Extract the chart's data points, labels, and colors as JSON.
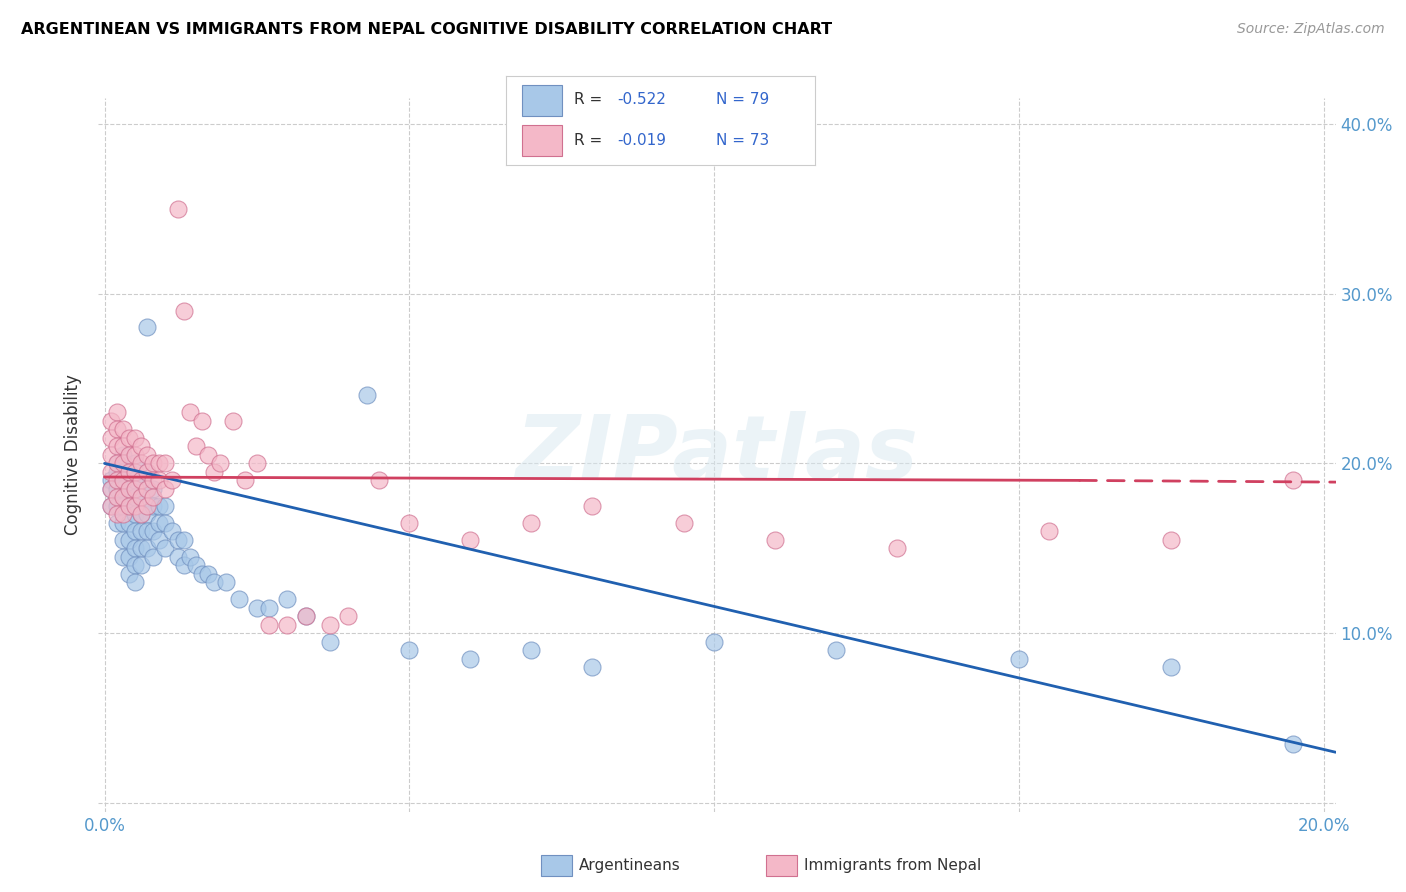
{
  "title": "ARGENTINEAN VS IMMIGRANTS FROM NEPAL COGNITIVE DISABILITY CORRELATION CHART",
  "source": "Source: ZipAtlas.com",
  "ylabel": "Cognitive Disability",
  "watermark": "ZIPatlas",
  "xlim": [
    -0.001,
    0.202
  ],
  "ylim": [
    -0.005,
    0.415
  ],
  "xticks": [
    0.0,
    0.05,
    0.1,
    0.15,
    0.2
  ],
  "yticks": [
    0.0,
    0.1,
    0.2,
    0.3,
    0.4
  ],
  "blue_color": "#a8c8e8",
  "pink_color": "#f4b8c8",
  "blue_line_color": "#2060b0",
  "pink_line_color": "#d04060",
  "blue_x": [
    0.001,
    0.001,
    0.001,
    0.002,
    0.002,
    0.002,
    0.002,
    0.002,
    0.003,
    0.003,
    0.003,
    0.003,
    0.003,
    0.003,
    0.003,
    0.004,
    0.004,
    0.004,
    0.004,
    0.004,
    0.004,
    0.004,
    0.005,
    0.005,
    0.005,
    0.005,
    0.005,
    0.005,
    0.005,
    0.005,
    0.006,
    0.006,
    0.006,
    0.006,
    0.006,
    0.006,
    0.007,
    0.007,
    0.007,
    0.007,
    0.007,
    0.007,
    0.008,
    0.008,
    0.008,
    0.008,
    0.009,
    0.009,
    0.009,
    0.01,
    0.01,
    0.01,
    0.011,
    0.012,
    0.012,
    0.013,
    0.013,
    0.014,
    0.015,
    0.016,
    0.017,
    0.018,
    0.02,
    0.022,
    0.025,
    0.027,
    0.03,
    0.033,
    0.037,
    0.043,
    0.05,
    0.06,
    0.07,
    0.08,
    0.1,
    0.12,
    0.15,
    0.175,
    0.195
  ],
  "blue_y": [
    0.19,
    0.185,
    0.175,
    0.2,
    0.195,
    0.185,
    0.175,
    0.165,
    0.205,
    0.195,
    0.185,
    0.175,
    0.165,
    0.155,
    0.145,
    0.195,
    0.185,
    0.175,
    0.165,
    0.155,
    0.145,
    0.135,
    0.2,
    0.19,
    0.18,
    0.17,
    0.16,
    0.15,
    0.14,
    0.13,
    0.19,
    0.18,
    0.17,
    0.16,
    0.15,
    0.14,
    0.28,
    0.195,
    0.185,
    0.17,
    0.16,
    0.15,
    0.185,
    0.175,
    0.16,
    0.145,
    0.175,
    0.165,
    0.155,
    0.175,
    0.165,
    0.15,
    0.16,
    0.155,
    0.145,
    0.155,
    0.14,
    0.145,
    0.14,
    0.135,
    0.135,
    0.13,
    0.13,
    0.12,
    0.115,
    0.115,
    0.12,
    0.11,
    0.095,
    0.24,
    0.09,
    0.085,
    0.09,
    0.08,
    0.095,
    0.09,
    0.085,
    0.08,
    0.035
  ],
  "pink_x": [
    0.001,
    0.001,
    0.001,
    0.001,
    0.001,
    0.001,
    0.002,
    0.002,
    0.002,
    0.002,
    0.002,
    0.002,
    0.002,
    0.003,
    0.003,
    0.003,
    0.003,
    0.003,
    0.003,
    0.004,
    0.004,
    0.004,
    0.004,
    0.004,
    0.005,
    0.005,
    0.005,
    0.005,
    0.005,
    0.006,
    0.006,
    0.006,
    0.006,
    0.006,
    0.007,
    0.007,
    0.007,
    0.007,
    0.008,
    0.008,
    0.008,
    0.009,
    0.009,
    0.01,
    0.01,
    0.011,
    0.012,
    0.013,
    0.014,
    0.015,
    0.016,
    0.017,
    0.018,
    0.019,
    0.021,
    0.023,
    0.025,
    0.027,
    0.03,
    0.033,
    0.037,
    0.04,
    0.045,
    0.05,
    0.06,
    0.07,
    0.08,
    0.095,
    0.11,
    0.13,
    0.155,
    0.175,
    0.195
  ],
  "pink_y": [
    0.225,
    0.215,
    0.205,
    0.195,
    0.185,
    0.175,
    0.23,
    0.22,
    0.21,
    0.2,
    0.19,
    0.18,
    0.17,
    0.22,
    0.21,
    0.2,
    0.19,
    0.18,
    0.17,
    0.215,
    0.205,
    0.195,
    0.185,
    0.175,
    0.215,
    0.205,
    0.195,
    0.185,
    0.175,
    0.21,
    0.2,
    0.19,
    0.18,
    0.17,
    0.205,
    0.195,
    0.185,
    0.175,
    0.2,
    0.19,
    0.18,
    0.2,
    0.19,
    0.2,
    0.185,
    0.19,
    0.35,
    0.29,
    0.23,
    0.21,
    0.225,
    0.205,
    0.195,
    0.2,
    0.225,
    0.19,
    0.2,
    0.105,
    0.105,
    0.11,
    0.105,
    0.11,
    0.19,
    0.165,
    0.155,
    0.165,
    0.175,
    0.165,
    0.155,
    0.15,
    0.16,
    0.155,
    0.19
  ],
  "blue_line_x0": 0.0,
  "blue_line_y0": 0.2,
  "blue_line_x1": 0.202,
  "blue_line_y1": 0.03,
  "pink_line_x0": 0.0,
  "pink_line_y0": 0.192,
  "pink_line_x1": 0.16,
  "pink_line_y1": 0.19,
  "pink_line_dash_x0": 0.16,
  "pink_line_dash_y0": 0.19,
  "pink_line_dash_x1": 0.202,
  "pink_line_dash_y1": 0.189
}
